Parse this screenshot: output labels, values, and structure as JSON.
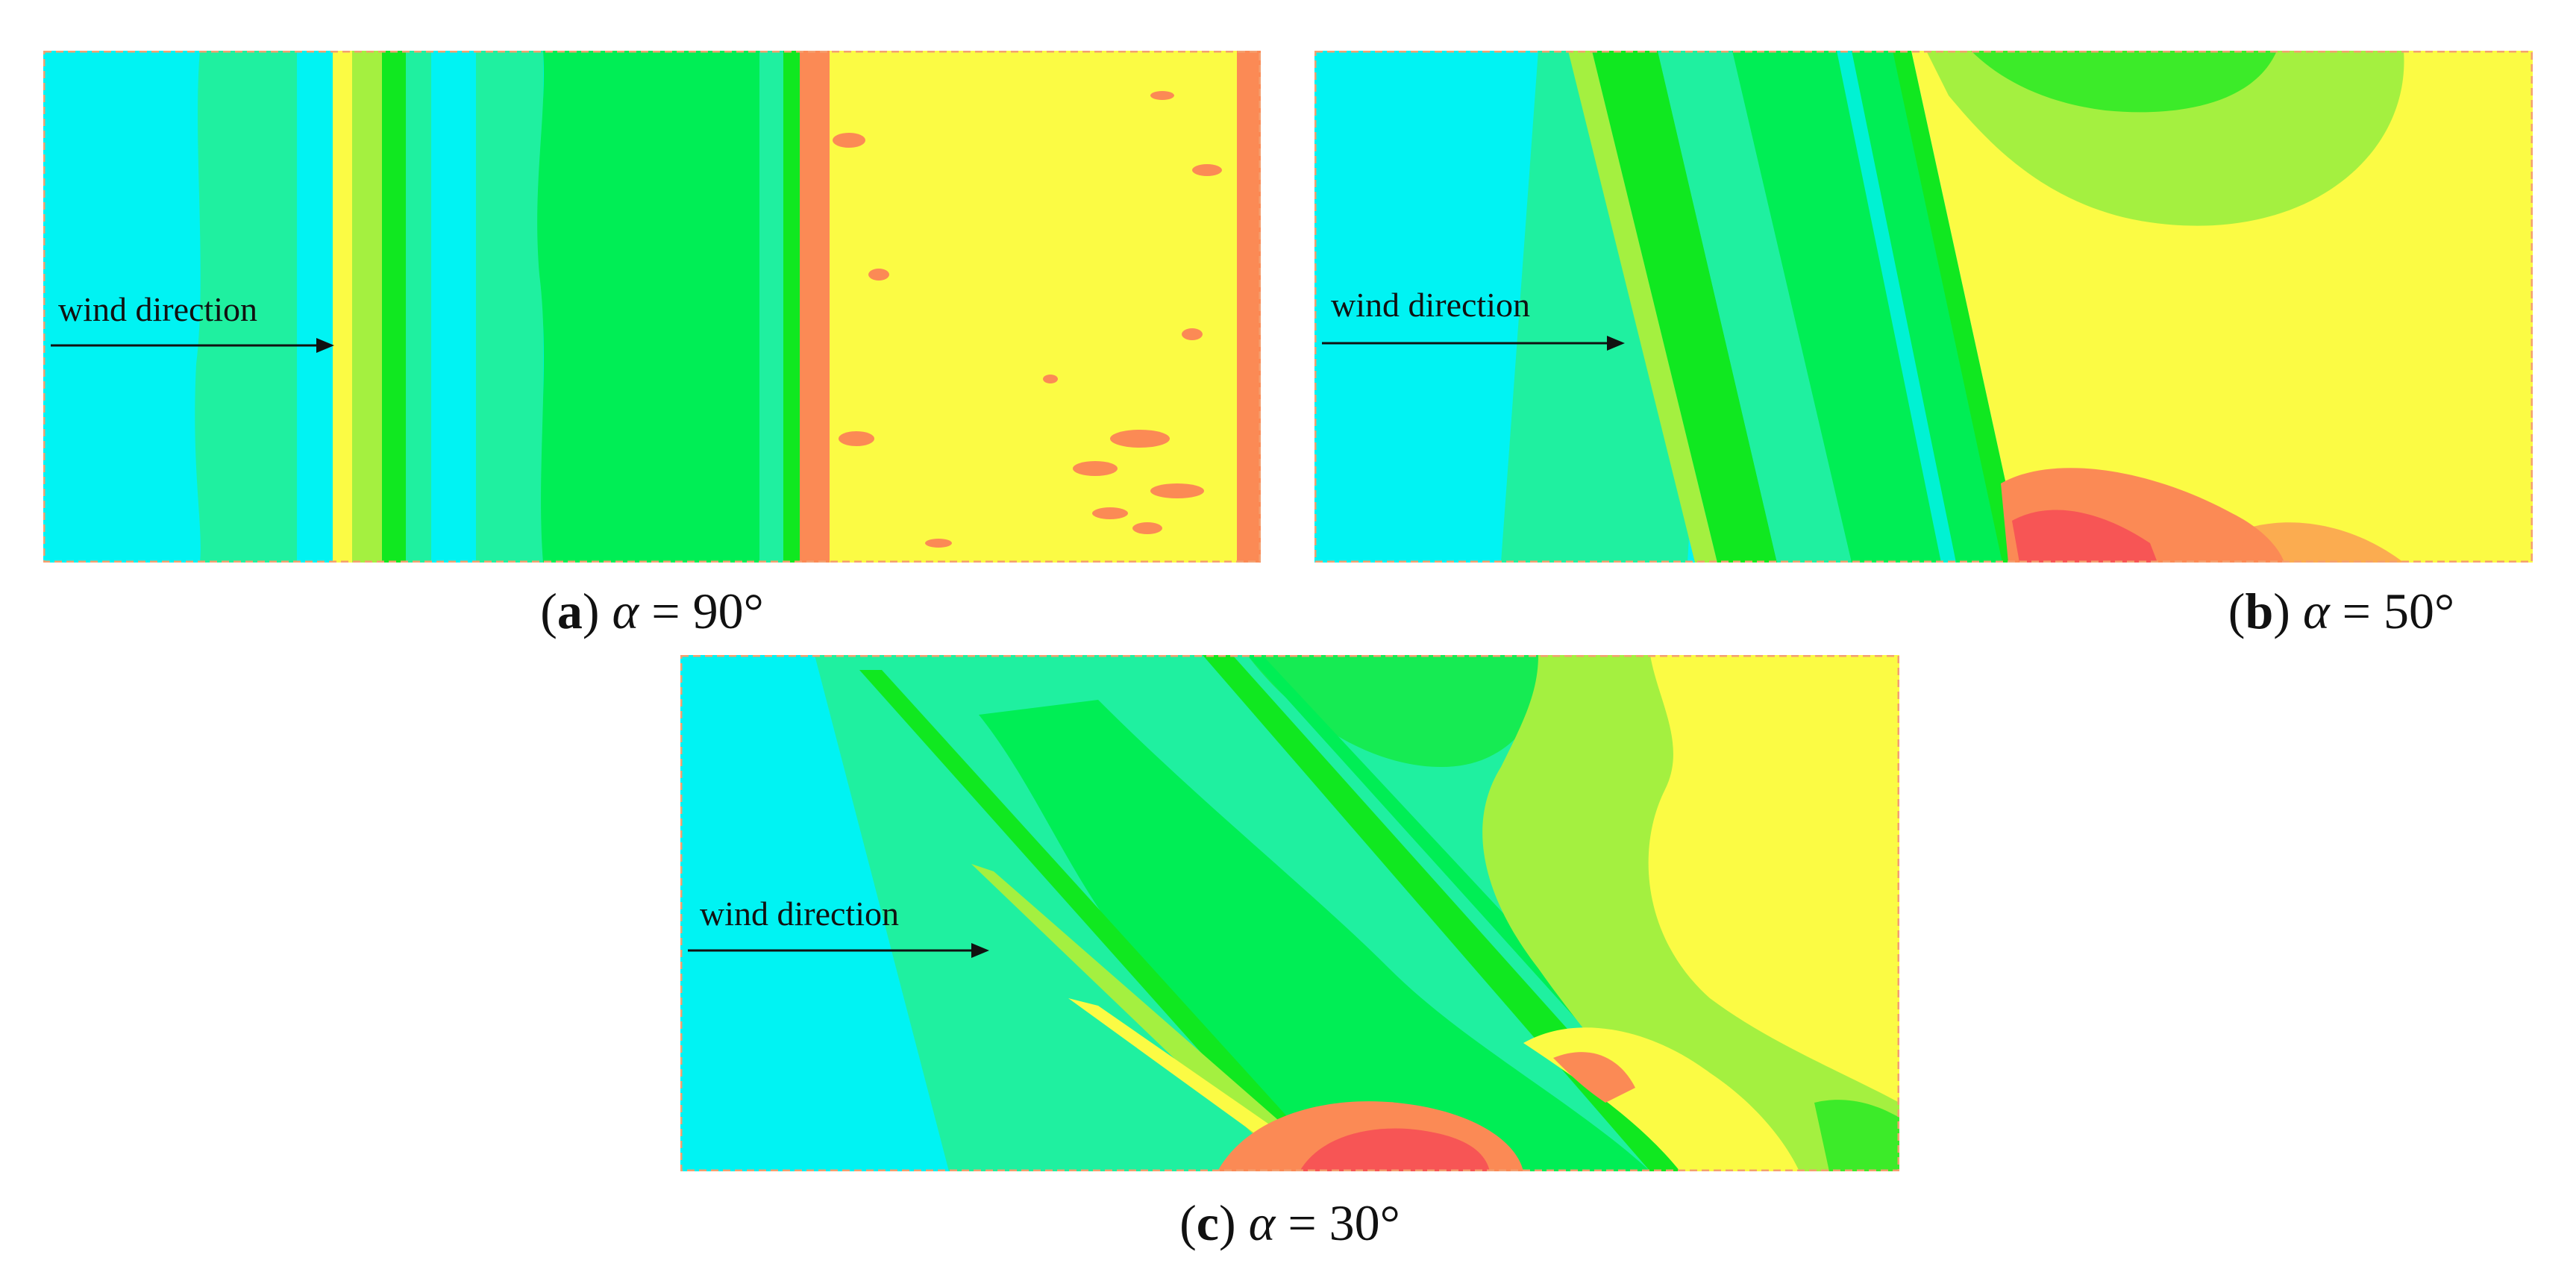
{
  "panels": [
    {
      "id": "a",
      "wind_label": "wind direction",
      "caption": {
        "letter": "a",
        "symbol": "α",
        "value": "= 90°"
      }
    },
    {
      "id": "b",
      "wind_label": "wind direction",
      "caption": {
        "letter": "b",
        "symbol": "α",
        "value": "= 50°"
      }
    },
    {
      "id": "c",
      "wind_label": "wind direction",
      "caption": {
        "letter": "c",
        "symbol": "α",
        "value": "= 30°"
      }
    }
  ],
  "colors": {
    "cyan": "#00f3f3",
    "aqua_green": "#1ff0a0",
    "green": "#00ee55",
    "bright_green": "#10e820",
    "lime": "#a4f040",
    "yellow": "#fbfb44",
    "orange": "#fb8a55",
    "red": "#f75555",
    "frame": "#f4a070",
    "arrow": "#111111"
  }
}
